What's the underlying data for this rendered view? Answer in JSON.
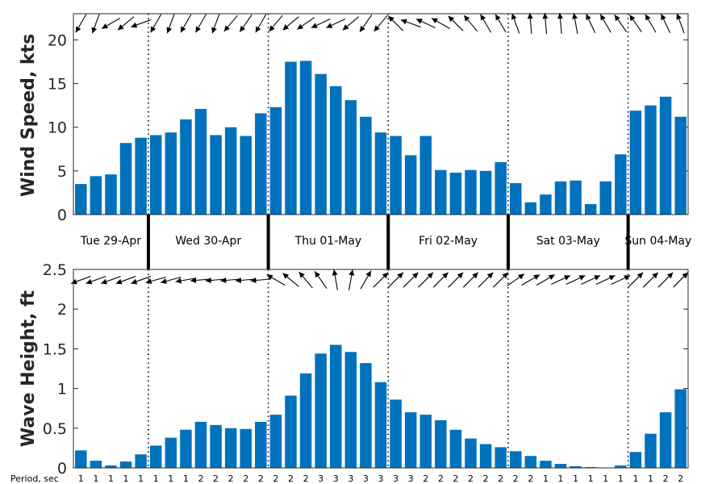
{
  "chart_data": {
    "type": "bar",
    "days": [
      "Tue 29-Apr",
      "Wed 30-Apr",
      "Thu 01-May",
      "Fri 02-May",
      "Sat 03-May",
      "Sun 04-May"
    ],
    "bars_per_day": [
      5,
      8,
      8,
      8,
      8,
      4
    ],
    "bar_color": "#0072BD",
    "period_label": "Period, sec",
    "periods": [
      1,
      1,
      1,
      1,
      1,
      1,
      1,
      1,
      2,
      2,
      2,
      2,
      2,
      2,
      2,
      2,
      3,
      3,
      3,
      3,
      3,
      3,
      3,
      2,
      2,
      2,
      2,
      2,
      2,
      2,
      2,
      1,
      1,
      1,
      1,
      1,
      1,
      1,
      1,
      2,
      2
    ],
    "wind": {
      "ylabel": "Wind Speed, kts",
      "ylim": [
        0,
        23
      ],
      "yticks": [
        "0",
        "5",
        "10",
        "15",
        "20"
      ],
      "values": [
        3.5,
        4.4,
        4.6,
        8.2,
        8.8,
        9.1,
        9.4,
        10.9,
        12.1,
        9.1,
        10.0,
        9.0,
        11.6,
        12.3,
        17.5,
        17.6,
        16.1,
        14.7,
        13.1,
        11.2,
        9.4,
        9.0,
        6.8,
        9.0,
        5.1,
        4.8,
        5.1,
        5.0,
        6.0,
        3.6,
        1.4,
        2.3,
        3.8,
        3.9,
        1.2,
        3.8,
        6.9,
        11.9,
        12.5,
        13.5,
        11.2
      ],
      "directions_deg": [
        210,
        200,
        240,
        230,
        250,
        210,
        200,
        210,
        210,
        200,
        220,
        215,
        210,
        220,
        230,
        235,
        245,
        245,
        230,
        215,
        220,
        315,
        290,
        295,
        300,
        315,
        320,
        330,
        330,
        340,
        355,
        355,
        355,
        350,
        335,
        330,
        325,
        325,
        330,
        335,
        340
      ]
    },
    "wave": {
      "ylabel": "Wave Height, ft",
      "ylim": [
        0,
        2.5
      ],
      "yticks": [
        "0",
        "0.5",
        "1",
        "1.5",
        "2",
        "2.5"
      ],
      "values": [
        0.22,
        0.09,
        0.03,
        0.08,
        0.17,
        0.28,
        0.38,
        0.48,
        0.58,
        0.54,
        0.5,
        0.49,
        0.58,
        0.67,
        0.91,
        1.19,
        1.44,
        1.55,
        1.46,
        1.32,
        1.08,
        0.86,
        0.7,
        0.67,
        0.6,
        0.48,
        0.37,
        0.3,
        0.26,
        0.21,
        0.15,
        0.09,
        0.05,
        0.02,
        0.01,
        0.0,
        0.03,
        0.2,
        0.43,
        0.7,
        0.99
      ],
      "directions_deg": [
        250,
        250,
        250,
        250,
        250,
        255,
        255,
        260,
        265,
        265,
        265,
        265,
        265,
        300,
        310,
        320,
        325,
        350,
        10,
        30,
        45,
        45,
        45,
        45,
        45,
        45,
        45,
        45,
        45,
        55,
        60,
        60,
        65,
        65,
        65,
        65,
        65,
        45,
        45,
        45,
        45
      ]
    }
  }
}
